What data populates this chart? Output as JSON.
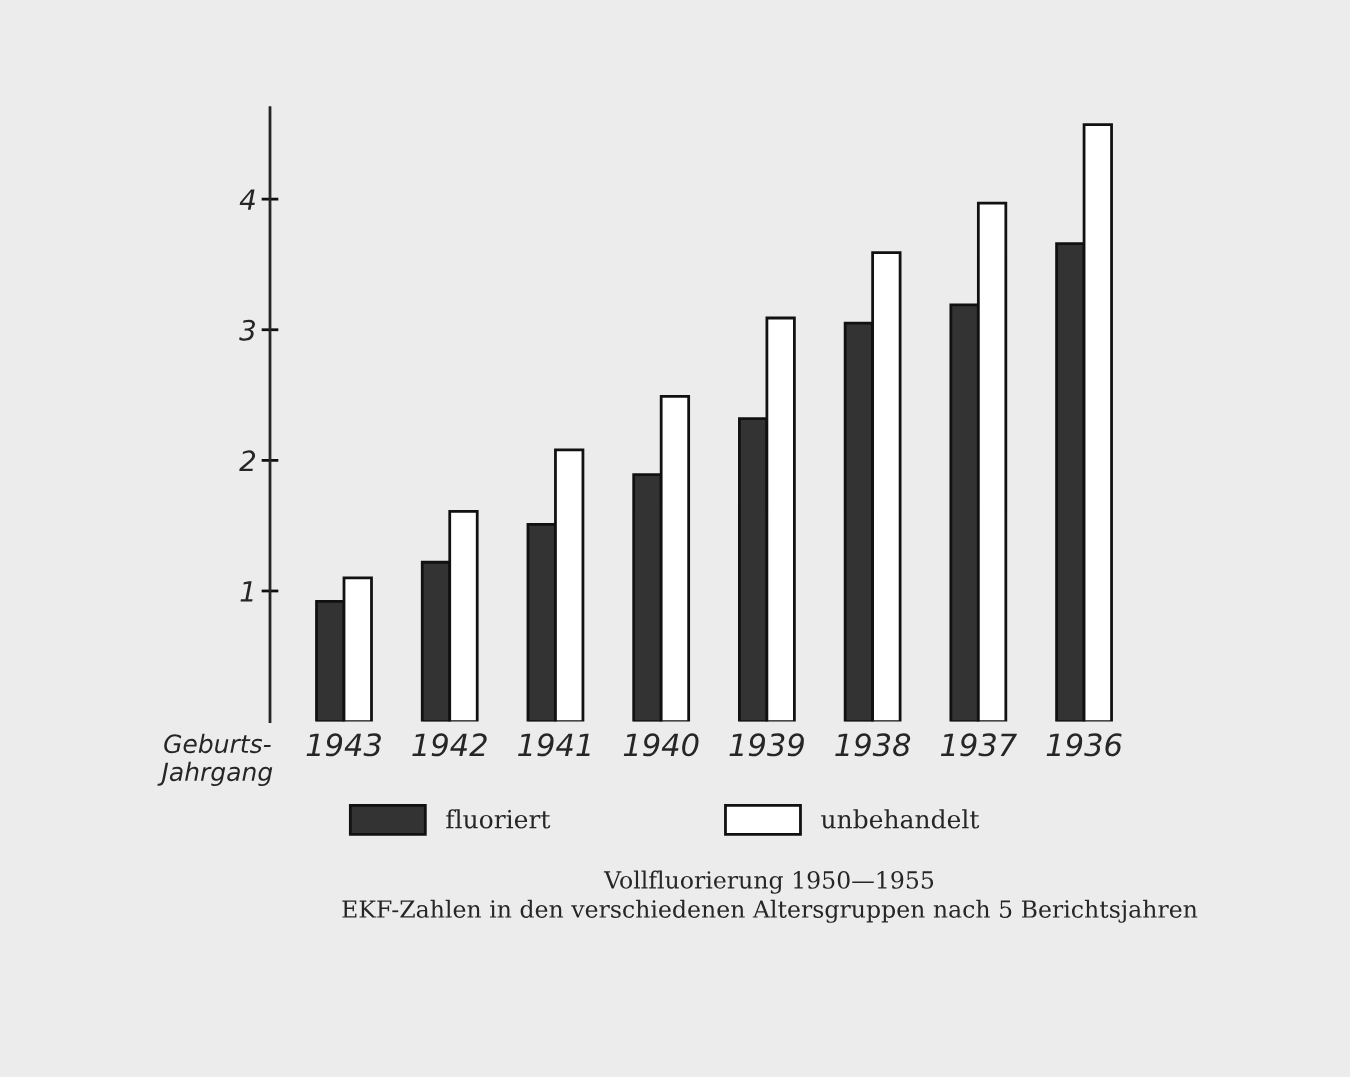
{
  "chart_data": {
    "type": "bar",
    "title": "Vollfluorierung 1950—1955",
    "subtitle": "EKF-Zahlen in den verschiedenen Altersgruppen nach 5 Berichtsjahren",
    "xlabel": "Geburts-\nJahrgang",
    "categories": [
      "1943",
      "1942",
      "1941",
      "1940",
      "1939",
      "1938",
      "1937",
      "1936"
    ],
    "series": [
      {
        "name": "fluoriert",
        "color": "#333333",
        "values": [
          0.92,
          1.22,
          1.51,
          1.89,
          2.32,
          3.05,
          3.19,
          3.66
        ]
      },
      {
        "name": "unbehandelt",
        "color": "#ffffff",
        "values": [
          1.1,
          1.61,
          2.08,
          2.49,
          3.09,
          3.59,
          3.97,
          4.57
        ]
      }
    ],
    "ylim": [
      0,
      4.7
    ],
    "yticks": [
      1,
      2,
      3,
      4
    ],
    "grid": false,
    "legend": "bottom"
  }
}
